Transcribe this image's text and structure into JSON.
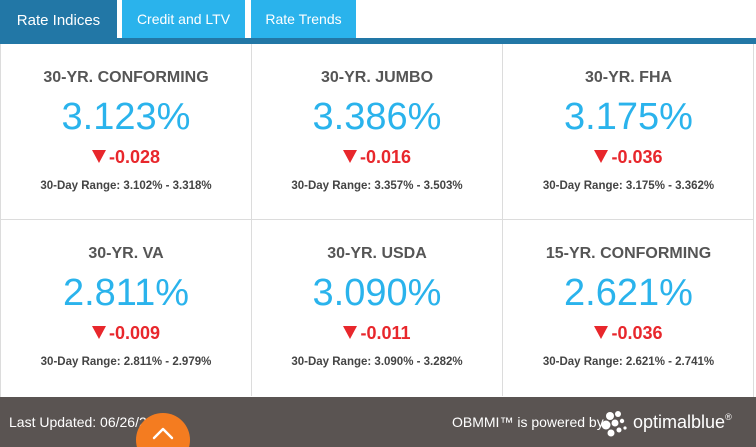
{
  "tabs": [
    {
      "label": "Rate Indices",
      "active": true
    },
    {
      "label": "Credit and LTV",
      "active": false
    },
    {
      "label": "Rate Trends",
      "active": false
    }
  ],
  "cells": [
    {
      "name": "30-YR. CONFORMING",
      "rate": "3.123%",
      "change": "-0.028",
      "range": "30-Day Range: 3.102% - 3.318%"
    },
    {
      "name": "30-YR. JUMBO",
      "rate": "3.386%",
      "change": "-0.016",
      "range": "30-Day Range: 3.357% - 3.503%"
    },
    {
      "name": "30-YR. FHA",
      "rate": "3.175%",
      "change": "-0.036",
      "range": "30-Day Range: 3.175% - 3.362%"
    },
    {
      "name": "30-YR. VA",
      "rate": "2.811%",
      "change": "-0.009",
      "range": "30-Day Range: 2.811% - 2.979%"
    },
    {
      "name": "30-YR. USDA",
      "rate": "3.090%",
      "change": "-0.011",
      "range": "30-Day Range: 3.090% - 3.282%"
    },
    {
      "name": "15-YR. CONFORMING",
      "rate": "2.621%",
      "change": "-0.036",
      "range": "30-Day Range: 2.621% - 2.741%"
    }
  ],
  "footer": {
    "last_updated": "Last Updated: 06/26/20",
    "powered_by": "OBMMI™ is powered by",
    "brand": "optimalblue",
    "brand_mark": "®"
  },
  "icons": {
    "scroll_top": "chevron-up-icon",
    "logo": "optimalblue-logo-icon",
    "change_down": "triangle-down-icon"
  },
  "colors": {
    "primary": "#2277a6",
    "tab": "#2ab3ec",
    "rate": "#2ab3ec",
    "negative": "#e8272c",
    "footer": "#5a5452",
    "accent": "#f47c20"
  }
}
